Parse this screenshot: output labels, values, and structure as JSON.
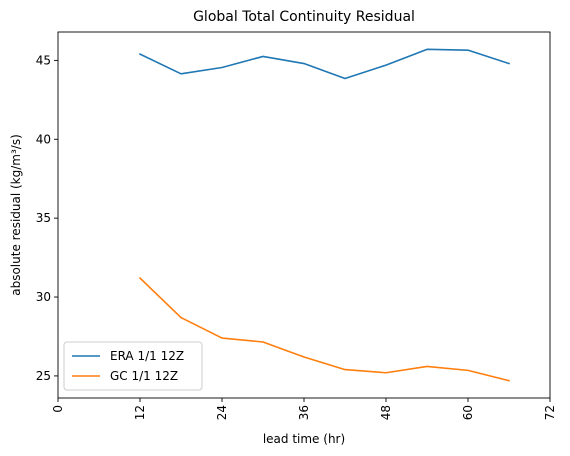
{
  "chart_data": {
    "type": "line",
    "title": "Global Total Continuity Residual",
    "xlabel": "lead time (hr)",
    "ylabel": "absolute residual (kg/m³/s)",
    "xlim": [
      0,
      72
    ],
    "ylim": [
      23.6,
      46.8
    ],
    "xticks": [
      0,
      12,
      24,
      36,
      48,
      60,
      72
    ],
    "yticks": [
      25,
      30,
      35,
      40,
      45
    ],
    "grid": false,
    "legend_position": "lower-left",
    "x": [
      12,
      18,
      24,
      30,
      36,
      42,
      48,
      54,
      60,
      66
    ],
    "series": [
      {
        "name": "ERA 1/1 12Z",
        "color": "#1f77b4",
        "values": [
          45.4,
          44.15,
          44.55,
          45.25,
          44.8,
          43.85,
          44.7,
          45.7,
          45.65,
          44.8
        ]
      },
      {
        "name": "GC 1/1 12Z",
        "color": "#ff7f0e",
        "values": [
          31.2,
          28.7,
          27.4,
          27.15,
          26.2,
          25.4,
          25.2,
          25.6,
          25.35,
          24.7
        ]
      }
    ]
  }
}
